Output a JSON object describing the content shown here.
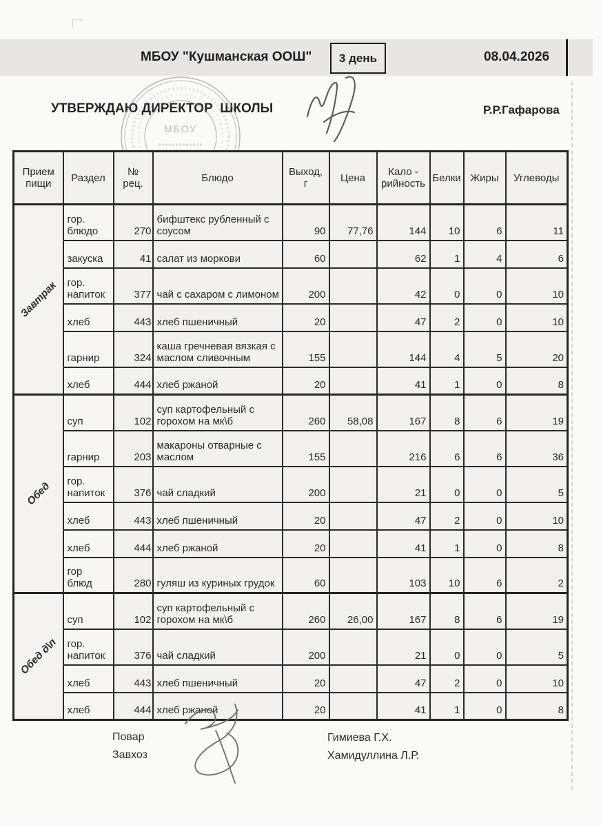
{
  "header": {
    "school": "МБОУ \"Кушманская ООШ\"",
    "day_badge": "3 день",
    "date": "08.04.2026",
    "approval": "УТВЕРЖДАЮ ДИРЕКТОР  ШКОЛЫ",
    "director_name": "Р.Р.Гафарова",
    "stamp_center_text": "МБОУ"
  },
  "table": {
    "columns": [
      [
        "Прием",
        "пищи"
      ],
      [
        "Раздел"
      ],
      [
        "№",
        "рец."
      ],
      [
        "Блюдо"
      ],
      [
        "Выход,",
        "г"
      ],
      [
        "Цена"
      ],
      [
        "Кало -",
        "рийность"
      ],
      [
        "Белки"
      ],
      [
        "Жиры"
      ],
      [
        "Углеводы"
      ]
    ],
    "sections": [
      {
        "meal": "Завтрак",
        "rows": [
          {
            "razdel": [
              "гор.",
              "блюдо"
            ],
            "rec": "270",
            "dish": [
              "бифштекс рубленный с",
              "соусом"
            ],
            "output": "90",
            "price": "77,76",
            "kcal": "144",
            "protein": "10",
            "fat": "6",
            "carbs": "11"
          },
          {
            "razdel": [
              "закуска"
            ],
            "rec": "41",
            "dish": [
              "салат из моркови"
            ],
            "output": "60",
            "price": "",
            "kcal": "62",
            "protein": "1",
            "fat": "4",
            "carbs": "6"
          },
          {
            "razdel": [
              "гор.",
              "напиток"
            ],
            "rec": "377",
            "dish": [
              "чай с сахаром с лимоном"
            ],
            "output": "200",
            "price": "",
            "kcal": "42",
            "protein": "0",
            "fat": "0",
            "carbs": "10"
          },
          {
            "razdel": [
              "хлеб"
            ],
            "rec": "443",
            "dish": [
              "хлеб пшеничный"
            ],
            "output": "20",
            "price": "",
            "kcal": "47",
            "protein": "2",
            "fat": "0",
            "carbs": "10"
          },
          {
            "razdel": [
              "гарнир"
            ],
            "rec": "324",
            "dish": [
              "каша гречневая вязкая с",
              "маслом сливочным"
            ],
            "output": "155",
            "price": "",
            "kcal": "144",
            "protein": "4",
            "fat": "5",
            "carbs": "20"
          },
          {
            "razdel": [
              "хлеб"
            ],
            "rec": "444",
            "dish": [
              "хлеб ржаной"
            ],
            "output": "20",
            "price": "",
            "kcal": "41",
            "protein": "1",
            "fat": "0",
            "carbs": "8"
          }
        ]
      },
      {
        "meal": "Обед",
        "rows": [
          {
            "razdel": [
              "суп"
            ],
            "rec": "102",
            "dish": [
              "суп картофельный с",
              "горохом на мк\\б"
            ],
            "output": "260",
            "price": "58,08",
            "kcal": "167",
            "protein": "8",
            "fat": "6",
            "carbs": "19"
          },
          {
            "razdel": [
              "гарнир"
            ],
            "rec": "203",
            "dish": [
              "макароны  отварные с",
              "маслом"
            ],
            "output": "155",
            "price": "",
            "kcal": "216",
            "protein": "6",
            "fat": "6",
            "carbs": "36"
          },
          {
            "razdel": [
              "гор.",
              "напиток"
            ],
            "rec": "376",
            "dish": [
              "чай сладкий"
            ],
            "output": "200",
            "price": "",
            "kcal": "21",
            "protein": "0",
            "fat": "0",
            "carbs": "5"
          },
          {
            "razdel": [
              "хлеб"
            ],
            "rec": "443",
            "dish": [
              "хлеб пшеничный"
            ],
            "output": "20",
            "price": "",
            "kcal": "47",
            "protein": "2",
            "fat": "0",
            "carbs": "10"
          },
          {
            "razdel": [
              "хлеб"
            ],
            "rec": "444",
            "dish": [
              "хлеб ржаной"
            ],
            "output": "20",
            "price": "",
            "kcal": "41",
            "protein": "1",
            "fat": "0",
            "carbs": "8"
          },
          {
            "razdel": [
              "гор",
              "блюд"
            ],
            "rec": "280",
            "dish": [
              "гуляш из куриных грудок"
            ],
            "output": "60",
            "price": "",
            "kcal": "103",
            "protein": "10",
            "fat": "6",
            "carbs": "2"
          }
        ]
      },
      {
        "meal": "Обед д\\п",
        "rows": [
          {
            "razdel": [
              "суп"
            ],
            "rec": "102",
            "dish": [
              "суп картофельный с",
              "горохом на мк\\б"
            ],
            "output": "260",
            "price": "26,00",
            "kcal": "167",
            "protein": "8",
            "fat": "6",
            "carbs": "19"
          },
          {
            "razdel": [
              "гор.",
              "напиток"
            ],
            "rec": "376",
            "dish": [
              "чай сладкий"
            ],
            "output": "200",
            "price": "",
            "kcal": "21",
            "protein": "0",
            "fat": "0",
            "carbs": "5"
          },
          {
            "razdel": [
              "хлеб"
            ],
            "rec": "443",
            "dish": [
              "хлеб пшеничный"
            ],
            "output": "20",
            "price": "",
            "kcal": "47",
            "protein": "2",
            "fat": "0",
            "carbs": "10"
          },
          {
            "razdel": [
              "хлеб"
            ],
            "rec": "444",
            "dish": [
              "хлеб ржаной"
            ],
            "output": "20",
            "price": "",
            "kcal": "41",
            "protein": "1",
            "fat": "0",
            "carbs": "8"
          }
        ]
      }
    ]
  },
  "footer": {
    "cook_label": "Повар",
    "steward_label": "Завхоз",
    "cook_name": "Гимиева Г.Х.",
    "steward_name": "Хамидуллина Л.Р."
  },
  "colors": {
    "band": "#e8e6e2",
    "border": "#242422",
    "ink": "#2b2b29",
    "stamp": "#8f8e85",
    "signature": "#504f4a"
  }
}
